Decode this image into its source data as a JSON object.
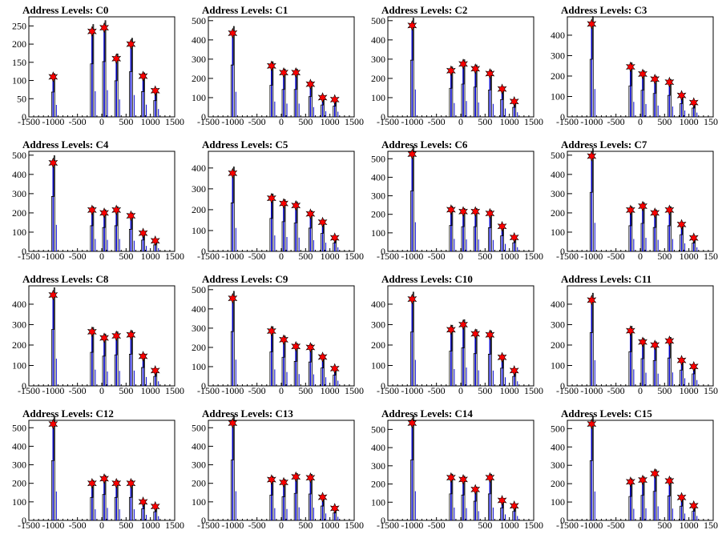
{
  "chart_data": [
    {
      "type": "bar",
      "title": "Address Levels: C0",
      "xlim": [
        -1500,
        1500
      ],
      "ylim": [
        0,
        275
      ],
      "yticks": [
        0,
        50,
        100,
        150,
        200,
        250
      ],
      "x": [
        -1000,
        -200,
        50,
        300,
        600,
        850,
        1100
      ],
      "peaks": [
        110,
        235,
        245,
        160,
        200,
        112,
        72
      ]
    },
    {
      "type": "bar",
      "title": "Address Levels: C1",
      "xlim": [
        -1500,
        1500
      ],
      "ylim": [
        0,
        520
      ],
      "yticks": [
        0,
        100,
        200,
        300,
        400,
        500
      ],
      "x": [
        -1000,
        -200,
        50,
        300,
        600,
        850,
        1100
      ],
      "peaks": [
        435,
        265,
        230,
        230,
        170,
        100,
        90
      ]
    },
    {
      "type": "bar",
      "title": "Address Levels: C2",
      "xlim": [
        -1500,
        1500
      ],
      "ylim": [
        0,
        520
      ],
      "yticks": [
        0,
        100,
        200,
        300,
        400,
        500
      ],
      "x": [
        -1000,
        -200,
        50,
        300,
        600,
        850,
        1100
      ],
      "peaks": [
        475,
        240,
        275,
        250,
        225,
        145,
        80
      ]
    },
    {
      "type": "bar",
      "title": "Address Levels: C3",
      "xlim": [
        -1500,
        1500
      ],
      "ylim": [
        0,
        490
      ],
      "yticks": [
        0,
        100,
        200,
        300,
        400
      ],
      "x": [
        -1000,
        -200,
        50,
        300,
        600,
        850,
        1100
      ],
      "peaks": [
        455,
        245,
        210,
        185,
        170,
        105,
        70
      ]
    },
    {
      "type": "bar",
      "title": "Address Levels: C4",
      "xlim": [
        -1500,
        1500
      ],
      "ylim": [
        0,
        520
      ],
      "yticks": [
        0,
        100,
        200,
        300,
        400,
        500
      ],
      "x": [
        -1000,
        -200,
        50,
        300,
        600,
        850,
        1100
      ],
      "peaks": [
        460,
        215,
        200,
        215,
        185,
        95,
        55
      ]
    },
    {
      "type": "bar",
      "title": "Address Levels: C5",
      "xlim": [
        -1500,
        1500
      ],
      "ylim": [
        0,
        480
      ],
      "yticks": [
        0,
        100,
        200,
        300,
        400
      ],
      "x": [
        -1000,
        -200,
        50,
        300,
        600,
        850,
        1100
      ],
      "peaks": [
        375,
        255,
        230,
        220,
        180,
        140,
        65
      ]
    },
    {
      "type": "bar",
      "title": "Address Levels: C6",
      "xlim": [
        -1500,
        1500
      ],
      "ylim": [
        0,
        540
      ],
      "yticks": [
        0,
        100,
        200,
        300,
        400,
        500
      ],
      "x": [
        -1000,
        -200,
        50,
        300,
        600,
        850,
        1100
      ],
      "peaks": [
        525,
        225,
        215,
        215,
        205,
        135,
        75
      ]
    },
    {
      "type": "bar",
      "title": "Address Levels: C7",
      "xlim": [
        -1500,
        1500
      ],
      "ylim": [
        0,
        520
      ],
      "yticks": [
        0,
        100,
        200,
        300,
        400,
        500
      ],
      "x": [
        -1000,
        -200,
        50,
        300,
        600,
        850,
        1100
      ],
      "peaks": [
        495,
        215,
        235,
        200,
        215,
        140,
        70
      ]
    },
    {
      "type": "bar",
      "title": "Address Levels: C8",
      "xlim": [
        -1500,
        1500
      ],
      "ylim": [
        0,
        490
      ],
      "yticks": [
        0,
        100,
        200,
        300,
        400
      ],
      "x": [
        -1000,
        -200,
        50,
        300,
        600,
        850,
        1100
      ],
      "peaks": [
        445,
        265,
        235,
        245,
        250,
        145,
        75
      ]
    },
    {
      "type": "bar",
      "title": "Address Levels: C9",
      "xlim": [
        -1500,
        1500
      ],
      "ylim": [
        0,
        520
      ],
      "yticks": [
        0,
        100,
        200,
        300,
        400,
        500
      ],
      "x": [
        -1000,
        -200,
        50,
        300,
        600,
        850,
        1100
      ],
      "peaks": [
        455,
        285,
        240,
        205,
        200,
        150,
        90
      ]
    },
    {
      "type": "bar",
      "title": "Address Levels: C10",
      "xlim": [
        -1500,
        1500
      ],
      "ylim": [
        0,
        490
      ],
      "yticks": [
        0,
        100,
        200,
        300,
        400
      ],
      "x": [
        -1000,
        -200,
        50,
        300,
        600,
        850,
        1100
      ],
      "peaks": [
        425,
        275,
        300,
        255,
        250,
        140,
        75
      ]
    },
    {
      "type": "bar",
      "title": "Address Levels: C11",
      "xlim": [
        -1500,
        1500
      ],
      "ylim": [
        0,
        490
      ],
      "yticks": [
        0,
        100,
        200,
        300,
        400
      ],
      "x": [
        -1000,
        -200,
        50,
        300,
        600,
        850,
        1100
      ],
      "peaks": [
        420,
        270,
        215,
        200,
        220,
        125,
        95
      ]
    },
    {
      "type": "bar",
      "title": "Address Levels: C12",
      "xlim": [
        -1500,
        1500
      ],
      "ylim": [
        0,
        540
      ],
      "yticks": [
        0,
        100,
        200,
        300,
        400,
        500
      ],
      "x": [
        -1000,
        -200,
        50,
        300,
        600,
        850,
        1100
      ],
      "peaks": [
        520,
        200,
        225,
        200,
        200,
        100,
        75
      ]
    },
    {
      "type": "bar",
      "title": "Address Levels: C13",
      "xlim": [
        -1500,
        1500
      ],
      "ylim": [
        0,
        540
      ],
      "yticks": [
        0,
        100,
        200,
        300,
        400,
        500
      ],
      "x": [
        -1000,
        -200,
        50,
        300,
        600,
        850,
        1100
      ],
      "peaks": [
        525,
        220,
        205,
        235,
        230,
        125,
        65
      ]
    },
    {
      "type": "bar",
      "title": "Address Levels: C14",
      "xlim": [
        -1500,
        1500
      ],
      "ylim": [
        0,
        550
      ],
      "yticks": [
        0,
        100,
        200,
        300,
        400,
        500
      ],
      "x": [
        -1000,
        -200,
        50,
        300,
        600,
        850,
        1100
      ],
      "peaks": [
        535,
        235,
        225,
        170,
        235,
        110,
        80
      ]
    },
    {
      "type": "bar",
      "title": "Address Levels: C15",
      "xlim": [
        -1500,
        1500
      ],
      "ylim": [
        0,
        545
      ],
      "yticks": [
        0,
        100,
        200,
        300,
        400,
        500
      ],
      "x": [
        -1000,
        -200,
        50,
        300,
        600,
        850,
        1100
      ],
      "peaks": [
        525,
        210,
        220,
        255,
        215,
        125,
        80
      ]
    }
  ],
  "xtick_labels": [
    "-1500",
    "-1000",
    "-500",
    "0",
    "500",
    "1000",
    "1500"
  ],
  "colors": {
    "histogram": "#0000cc",
    "frame": "#000000",
    "marker": "#ff0000"
  }
}
